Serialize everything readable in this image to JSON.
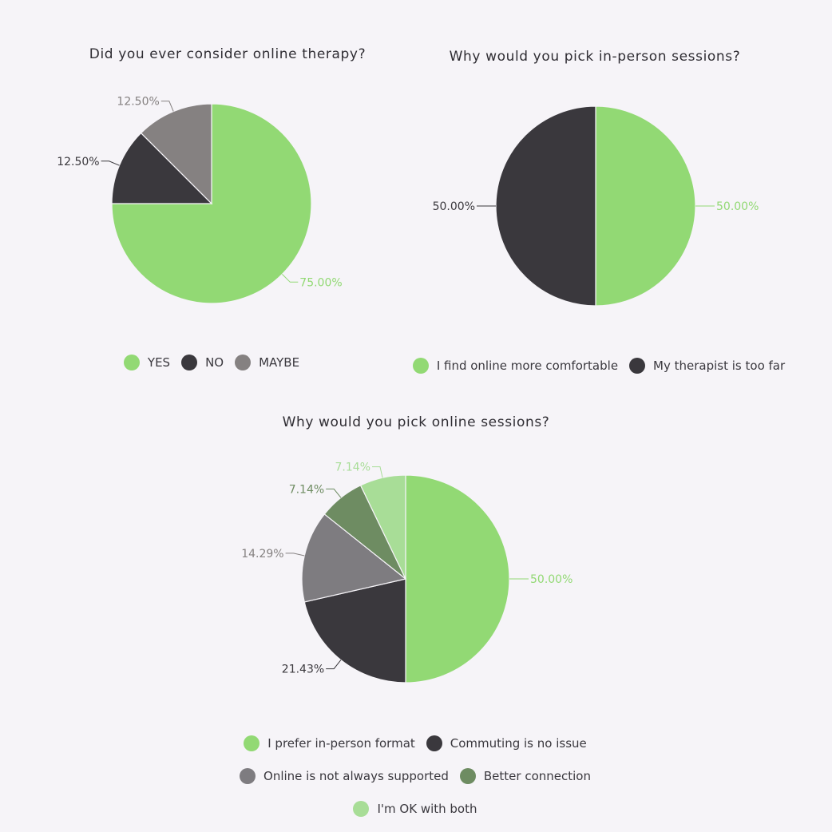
{
  "chart_data": [
    {
      "type": "pie",
      "title": "Did you ever consider online therapy?",
      "categories": [
        "YES",
        "NO",
        "MAYBE"
      ],
      "values": [
        75.0,
        12.5,
        12.5
      ],
      "data_labels": [
        "75.00%",
        "12.50%",
        "12.50%"
      ],
      "colors": [
        "#92d974",
        "#3a383d",
        "#858181"
      ],
      "label_colors": [
        "#92d974",
        "#3a383d",
        "#858181"
      ],
      "legend_position": "bottom"
    },
    {
      "type": "pie",
      "title": "Why would you pick in-person sessions?",
      "categories": [
        "I find online more comfortable",
        "My therapist is too far"
      ],
      "values": [
        50.0,
        50.0
      ],
      "data_labels": [
        "50.00%",
        "50.00%"
      ],
      "colors": [
        "#92d974",
        "#3a383d"
      ],
      "label_colors": [
        "#92d974",
        "#3a383d"
      ],
      "legend_position": "bottom"
    },
    {
      "type": "pie",
      "title": "Why would you pick online sessions?",
      "categories": [
        "I prefer in-person format",
        "Commuting is no issue",
        "Online is not always supported",
        "Better connection",
        "I'm OK with both"
      ],
      "values": [
        50.0,
        21.43,
        14.29,
        7.14,
        7.14
      ],
      "data_labels": [
        "50.00%",
        "21.43%",
        "14.29%",
        "7.14%",
        "7.14%"
      ],
      "colors": [
        "#92d974",
        "#3a383d",
        "#7e7c80",
        "#6e8c62",
        "#a8dd97"
      ],
      "label_colors": [
        "#92d974",
        "#3a383d",
        "#858181",
        "#6e8c62",
        "#a8dd97"
      ],
      "legend_position": "bottom"
    }
  ]
}
